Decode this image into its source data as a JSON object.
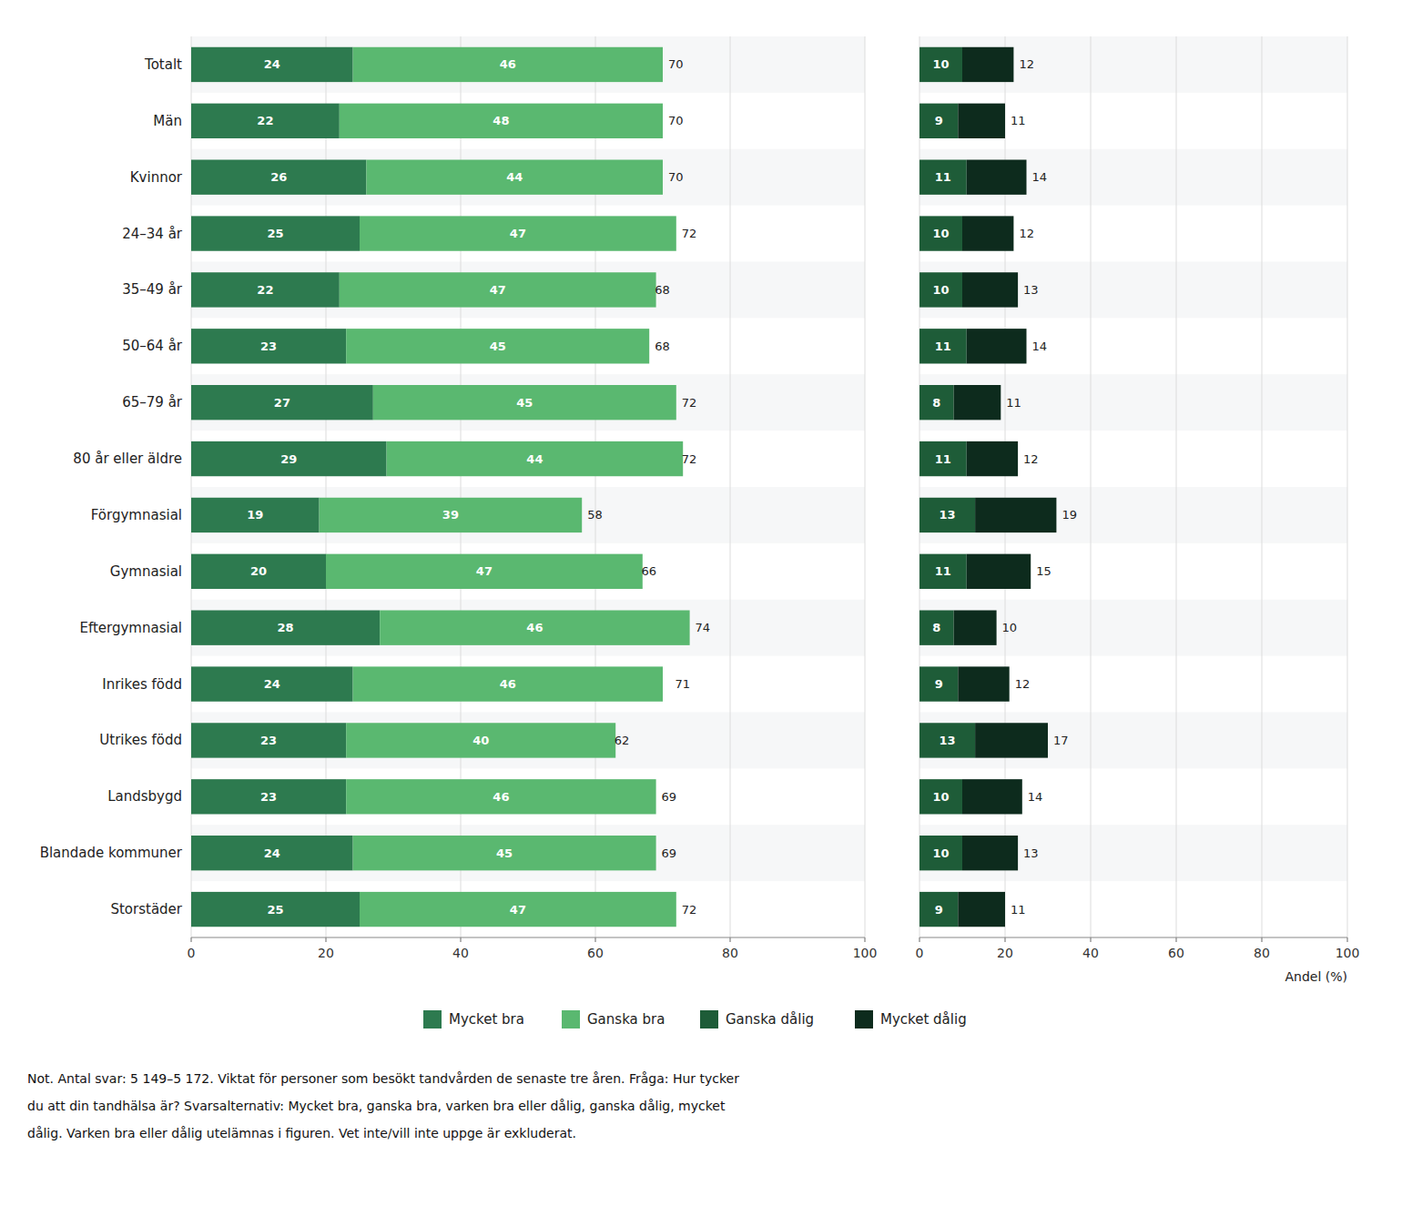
{
  "chart_data": [
    {
      "type": "bar",
      "orientation": "horizontal",
      "stacked": true,
      "data_labels": true,
      "grid": true,
      "legend": "bottom",
      "categories": [
        "Totalt",
        "Män",
        "Kvinnor",
        "24–34 år",
        "35–49 år",
        "50–64 år",
        "65–79 år",
        "80 år eller äldre",
        "Förgymnasial",
        "Gymnasial",
        "Eftergymnasial",
        "Inrikes född",
        "Utrikes född",
        "Landsbygd",
        "Blandade kommuner",
        "Storstäder"
      ],
      "series": [
        {
          "name": "Mycket bra",
          "color": "#2d7a4f",
          "values": [
            24,
            22,
            26,
            25,
            22,
            23,
            27,
            29,
            19,
            20,
            28,
            24,
            23,
            23,
            24,
            25
          ]
        },
        {
          "name": "Ganska bra",
          "color": "#5ab870",
          "values": [
            46,
            48,
            44,
            47,
            47,
            45,
            45,
            44,
            39,
            47,
            46,
            46,
            40,
            46,
            45,
            47
          ]
        }
      ],
      "totals": [
        70,
        70,
        70,
        72,
        68,
        68,
        72,
        72,
        58,
        66,
        74,
        71,
        62,
        69,
        69,
        72
      ],
      "xlim": [
        0,
        100
      ],
      "xticks": [
        0,
        20,
        40,
        60,
        80,
        100
      ],
      "annotations": [
        "Not. Antal svar: 5 149–5 172. Viktat för personer som besökt tandvården de senaste tre åren. Fråga: Hur tycker",
        "du att din tandhälsa är? Svarsalternativ: Mycket bra, ganska bra, varken bra eller dålig, ganska dålig, mycket",
        "dålig. Varken bra eller dålig utelämnas i figuren. Vet inte/vill inte uppge är exkluderat."
      ]
    },
    {
      "type": "bar",
      "orientation": "horizontal",
      "stacked": true,
      "data_labels": true,
      "grid": true,
      "legend": "bottom",
      "xlabel": "Andel (%)",
      "categories": [
        null,
        null,
        null,
        null,
        null,
        null,
        null,
        null,
        null,
        null,
        null,
        null,
        null,
        null,
        null,
        null
      ],
      "series": [
        {
          "name": "Ganska dålig",
          "color": "#1e5c38",
          "values": [
            10,
            9,
            11,
            10,
            10,
            11,
            8,
            11,
            13,
            11,
            8,
            9,
            13,
            10,
            10,
            9
          ]
        },
        {
          "name": "Mycket dålig",
          "color": "#0d2b1d",
          "values": [
            12,
            11,
            14,
            12,
            13,
            14,
            11,
            12,
            19,
            15,
            10,
            12,
            17,
            14,
            13,
            11
          ]
        }
      ],
      "xlim": [
        0,
        100
      ],
      "xticks": [
        0,
        20,
        40,
        60,
        80,
        100
      ]
    }
  ]
}
